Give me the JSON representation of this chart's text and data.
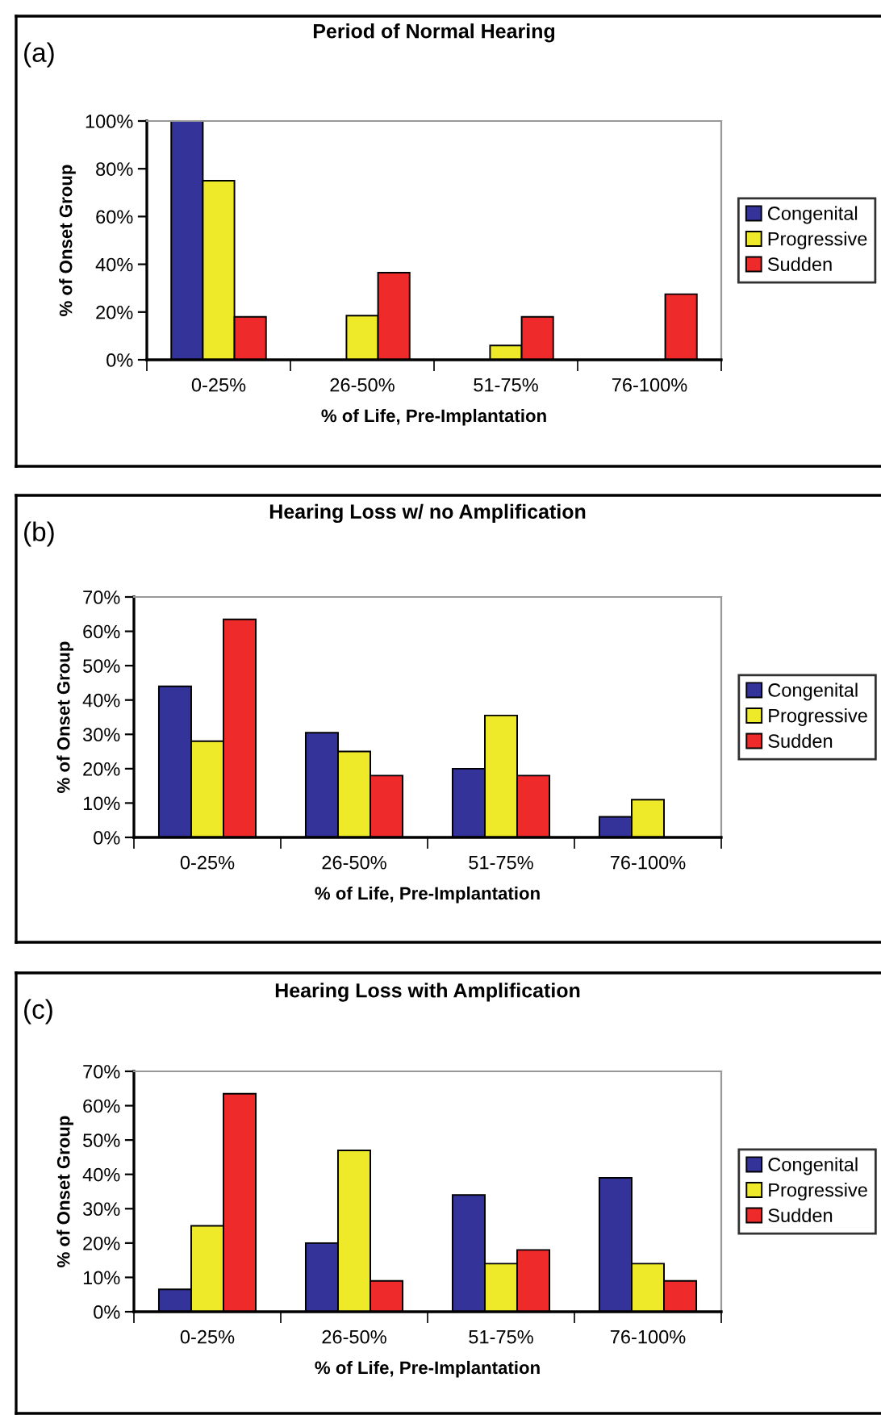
{
  "chart_data": [
    {
      "type": "bar",
      "title": "Period of Normal Hearing",
      "xlabel": "% of Life, Pre-Implantation",
      "ylabel": "% of Onset Group",
      "annotations": [
        "(a)"
      ],
      "categories": [
        "0-25%",
        "26-50%",
        "51-75%",
        "76-100%"
      ],
      "series": [
        {
          "name": "Congenital",
          "color": "#333399",
          "values": [
            100,
            null,
            null,
            null
          ]
        },
        {
          "name": "Progressive",
          "color": "#eeea2a",
          "values": [
            75,
            18.5,
            6,
            null
          ]
        },
        {
          "name": "Sudden",
          "color": "#ee2a2a",
          "values": [
            18,
            36.5,
            18,
            27.5
          ]
        }
      ],
      "ylim": [
        0,
        100
      ],
      "yticks": [
        {
          "value": 0,
          "label": "0%"
        },
        {
          "value": 20,
          "label": "20%"
        },
        {
          "value": 40,
          "label": "40%"
        },
        {
          "value": 60,
          "label": "60%"
        },
        {
          "value": 80,
          "label": "80%"
        },
        {
          "value": 100,
          "label": "100%"
        }
      ],
      "legend": "right"
    },
    {
      "type": "bar",
      "title": "Hearing Loss w/ no Amplification",
      "xlabel": "% of Life, Pre-Implantation",
      "ylabel": "% of Onset Group",
      "annotations": [
        "(b)"
      ],
      "categories": [
        "0-25%",
        "26-50%",
        "51-75%",
        "76-100%"
      ],
      "series": [
        {
          "name": "Congenital",
          "color": "#333399",
          "values": [
            44,
            30.5,
            20,
            6
          ]
        },
        {
          "name": "Progressive",
          "color": "#eeea2a",
          "values": [
            28,
            25,
            35.5,
            11
          ]
        },
        {
          "name": "Sudden",
          "color": "#ee2a2a",
          "values": [
            63.5,
            18,
            18,
            null
          ]
        }
      ],
      "ylim": [
        0,
        70
      ],
      "yticks": [
        {
          "value": 0,
          "label": "0%"
        },
        {
          "value": 10,
          "label": "10%"
        },
        {
          "value": 20,
          "label": "20%"
        },
        {
          "value": 30,
          "label": "30%"
        },
        {
          "value": 40,
          "label": "40%"
        },
        {
          "value": 50,
          "label": "50%"
        },
        {
          "value": 60,
          "label": "60%"
        },
        {
          "value": 70,
          "label": "70%"
        }
      ],
      "legend": "right"
    },
    {
      "type": "bar",
      "title": "Hearing Loss with Amplification",
      "xlabel": "% of Life, Pre-Implantation",
      "ylabel": "% of Onset Group",
      "annotations": [
        "(c)"
      ],
      "categories": [
        "0-25%",
        "26-50%",
        "51-75%",
        "76-100%"
      ],
      "series": [
        {
          "name": "Congenital",
          "color": "#333399",
          "values": [
            6.5,
            20,
            34,
            39
          ]
        },
        {
          "name": "Progressive",
          "color": "#eeea2a",
          "values": [
            25,
            47,
            14,
            14
          ]
        },
        {
          "name": "Sudden",
          "color": "#ee2a2a",
          "values": [
            63.5,
            9,
            18,
            9
          ]
        }
      ],
      "ylim": [
        0,
        70
      ],
      "yticks": [
        {
          "value": 0,
          "label": "0%"
        },
        {
          "value": 10,
          "label": "10%"
        },
        {
          "value": 20,
          "label": "20%"
        },
        {
          "value": 30,
          "label": "30%"
        },
        {
          "value": 40,
          "label": "40%"
        },
        {
          "value": 50,
          "label": "50%"
        },
        {
          "value": 60,
          "label": "60%"
        },
        {
          "value": 70,
          "label": "70%"
        }
      ],
      "legend": "right"
    }
  ]
}
